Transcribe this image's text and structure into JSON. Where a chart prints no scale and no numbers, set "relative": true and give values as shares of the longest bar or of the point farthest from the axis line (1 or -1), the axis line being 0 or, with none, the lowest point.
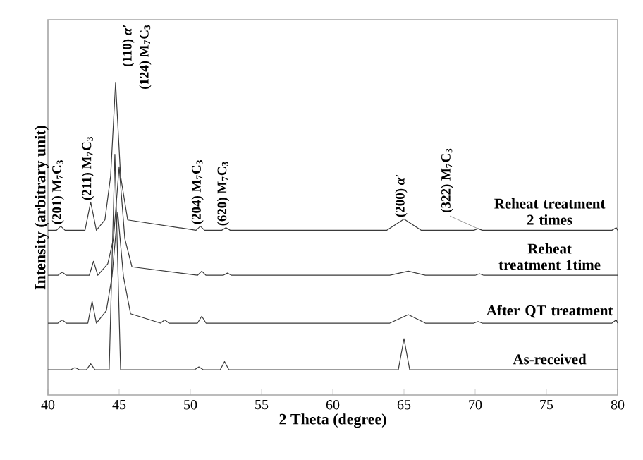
{
  "chart_data": {
    "type": "line",
    "relative": true,
    "xlabel": "2 Theta (degree)",
    "ylabel": "Intensity (arbitrary unit)",
    "xlim": [
      40,
      80
    ],
    "xticks": [
      40,
      45,
      50,
      55,
      60,
      65,
      70,
      75,
      80
    ],
    "tick_labels": "x",
    "grid": false,
    "marker": "none",
    "line_style": "solid",
    "series": [
      {
        "name": "Reheat treatment 2 times",
        "color": "#3a3a3a",
        "x": [
          40,
          40.6,
          40.9,
          41.2,
          42.6,
          43.0,
          43.4,
          44.0,
          44.4,
          44.75,
          45.1,
          45.6,
          50.4,
          50.7,
          51.0,
          52.2,
          52.5,
          52.8,
          63.8,
          65.0,
          66.2,
          69.9,
          70.2,
          70.5,
          79.6,
          79.9,
          80
        ],
        "values": [
          0.527,
          0.527,
          0.54,
          0.527,
          0.527,
          0.617,
          0.527,
          0.56,
          0.7,
          1.0,
          0.7,
          0.56,
          0.527,
          0.54,
          0.527,
          0.527,
          0.535,
          0.527,
          0.527,
          0.563,
          0.527,
          0.527,
          0.532,
          0.527,
          0.527,
          0.535,
          0.527
        ]
      },
      {
        "name": "Reheat treatment 1time",
        "color": "#3a3a3a",
        "x": [
          40,
          40.7,
          41.0,
          41.3,
          42.9,
          43.2,
          43.5,
          44.2,
          44.6,
          45.0,
          45.4,
          45.9,
          50.5,
          50.8,
          51.1,
          52.3,
          52.6,
          52.9,
          64.0,
          65.3,
          66.5,
          70.0,
          70.3,
          70.6,
          80
        ],
        "values": [
          0.383,
          0.383,
          0.393,
          0.383,
          0.383,
          0.428,
          0.383,
          0.42,
          0.5,
          0.73,
          0.5,
          0.41,
          0.383,
          0.396,
          0.383,
          0.383,
          0.39,
          0.383,
          0.383,
          0.396,
          0.383,
          0.383,
          0.388,
          0.383,
          0.383
        ]
      },
      {
        "name": "After QT treatment",
        "color": "#3a3a3a",
        "x": [
          40,
          40.7,
          41.0,
          41.3,
          42.8,
          43.1,
          43.4,
          44.1,
          44.5,
          44.9,
          45.3,
          45.8,
          47.9,
          48.2,
          48.5,
          50.5,
          50.8,
          51.1,
          64.0,
          65.3,
          66.5,
          69.9,
          70.2,
          70.5,
          79.6,
          79.9,
          80
        ],
        "values": [
          0.23,
          0.23,
          0.24,
          0.23,
          0.23,
          0.3,
          0.23,
          0.27,
          0.38,
          0.585,
          0.38,
          0.26,
          0.23,
          0.24,
          0.23,
          0.23,
          0.252,
          0.23,
          0.23,
          0.257,
          0.23,
          0.23,
          0.235,
          0.23,
          0.23,
          0.24,
          0.23
        ]
      },
      {
        "name": "As-received",
        "color": "#3a3a3a",
        "x": [
          40,
          41.6,
          41.9,
          42.2,
          42.7,
          43.0,
          43.3,
          44.3,
          44.7,
          45.1,
          50.3,
          50.6,
          50.9,
          52.1,
          52.4,
          52.7,
          64.6,
          65.0,
          65.4,
          80
        ],
        "values": [
          0.081,
          0.081,
          0.088,
          0.081,
          0.081,
          0.1,
          0.081,
          0.081,
          0.77,
          0.081,
          0.081,
          0.09,
          0.081,
          0.081,
          0.107,
          0.081,
          0.081,
          0.18,
          0.081,
          0.081
        ]
      }
    ],
    "annotations": [
      {
        "text": "(201) M$_{7}$C$_{3}$",
        "x": 40.9,
        "y": 0.54
      },
      {
        "text": "(211) M$_{7}$C$_{3}$",
        "x": 43.0,
        "y": 0.617
      },
      {
        "text": "(110) *α′*",
        "x": 44.75,
        "y": 1.0
      },
      {
        "text": "(124) M$_{7}$C$_{3}$",
        "x": 44.75,
        "y": 1.0
      },
      {
        "text": "(204) M$_{7}$C$_{3}$",
        "x": 50.7,
        "y": 0.54
      },
      {
        "text": "(620) M$_{7}$C$_{3}$",
        "x": 52.5,
        "y": 0.535
      },
      {
        "text": "(200) *α′*",
        "x": 65.0,
        "y": 0.563
      },
      {
        "text": "(322) M$_{7}$C$_{3}$",
        "x": 70.2,
        "y": 0.532
      }
    ]
  }
}
